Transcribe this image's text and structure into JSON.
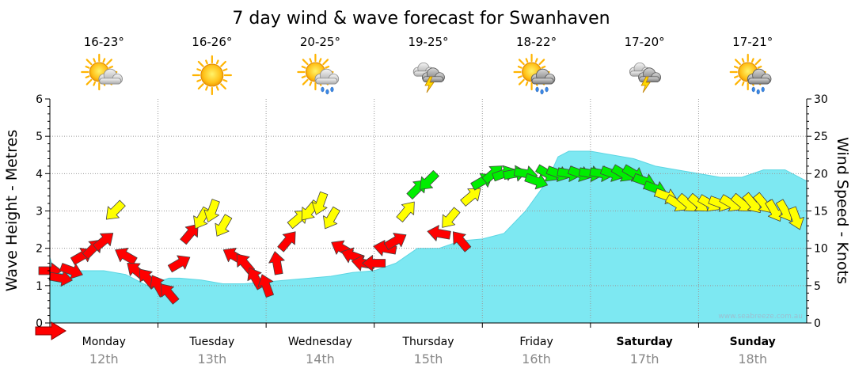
{
  "chart_data": {
    "type": "area",
    "title": "7 day wind & wave forecast for Swanhaven",
    "ylabel_left": "Wave Height - Metres",
    "ylabel_right": "Wind Speed - Knots",
    "ylim_left": [
      0,
      6
    ],
    "ylim_right": [
      0,
      30
    ],
    "yticks_left": [
      "0",
      "1",
      "2",
      "3",
      "4",
      "5",
      "6"
    ],
    "yticks_right": [
      "0",
      "5",
      "10",
      "15",
      "20",
      "25",
      "30"
    ],
    "watermark": "www.seabreeze.com.au",
    "days": [
      {
        "name": "Monday",
        "date": "12th",
        "temp": "16-23°",
        "icon": "partly-cloudy-icon",
        "bold": false
      },
      {
        "name": "Tuesday",
        "date": "13th",
        "temp": "16-26°",
        "icon": "sunny-icon",
        "bold": false
      },
      {
        "name": "Wednesday",
        "date": "14th",
        "temp": "20-25°",
        "icon": "sun-showers-icon",
        "bold": false
      },
      {
        "name": "Thursday",
        "date": "15th",
        "temp": "19-25°",
        "icon": "storm-icon",
        "bold": false
      },
      {
        "name": "Friday",
        "date": "16th",
        "temp": "18-22°",
        "icon": "sun-rain-icon",
        "bold": false
      },
      {
        "name": "Saturday",
        "date": "17th",
        "temp": "17-20°",
        "icon": "storm-icon",
        "bold": true
      },
      {
        "name": "Sunday",
        "date": "18th",
        "temp": "17-21°",
        "icon": "sun-rain-icon",
        "bold": true
      }
    ],
    "wave_height": {
      "name": "Wave Height",
      "color": "#7de8f2",
      "x_days": [
        0,
        0.05,
        0.15,
        0.3,
        0.5,
        0.7,
        0.9,
        1.0,
        1.1,
        1.2,
        1.4,
        1.6,
        1.8,
        2.0,
        2.2,
        2.4,
        2.6,
        2.8,
        3.0,
        3.2,
        3.4,
        3.6,
        3.8,
        4.0,
        4.2,
        4.4,
        4.6,
        4.7,
        4.8,
        5.0,
        5.2,
        5.4,
        5.6,
        5.8,
        6.0,
        6.2,
        6.4,
        6.6,
        6.8,
        7.0
      ],
      "values": [
        1.75,
        1.3,
        1.35,
        1.4,
        1.4,
        1.3,
        1.0,
        1.1,
        1.2,
        1.2,
        1.15,
        1.05,
        1.05,
        1.1,
        1.15,
        1.2,
        1.25,
        1.35,
        1.4,
        1.6,
        2.0,
        2.0,
        2.2,
        2.25,
        2.4,
        3.0,
        3.8,
        4.45,
        4.6,
        4.6,
        4.5,
        4.4,
        4.2,
        4.1,
        4.0,
        3.9,
        3.9,
        4.1,
        4.1,
        3.8
      ]
    },
    "wind": {
      "name": "Wind Speed",
      "color_scale": [
        {
          "max_knots": 12,
          "color": "#ff0000"
        },
        {
          "max_knots": 17,
          "color": "#ffff00"
        },
        {
          "max_knots": 30,
          "color": "#00ee00"
        }
      ],
      "x_days": [
        0,
        0.1,
        0.2,
        0.3,
        0.4,
        0.5,
        0.6,
        0.7,
        0.8,
        0.9,
        1.0,
        1.1,
        1.2,
        1.3,
        1.4,
        1.5,
        1.6,
        1.7,
        1.8,
        1.9,
        2.0,
        2.1,
        2.2,
        2.3,
        2.4,
        2.5,
        2.6,
        2.7,
        2.8,
        2.9,
        3.0,
        3.1,
        3.2,
        3.3,
        3.4,
        3.5,
        3.6,
        3.7,
        3.8,
        3.9,
        4.0,
        4.1,
        4.2,
        4.3,
        4.4,
        4.5,
        4.6,
        4.7,
        4.8,
        4.9,
        5.0,
        5.1,
        5.2,
        5.3,
        5.4,
        5.5,
        5.6,
        5.7,
        5.8,
        5.9,
        6.0,
        6.1,
        6.2,
        6.3,
        6.4,
        6.5,
        6.6,
        6.7,
        6.8,
        6.9
      ],
      "knots": [
        7,
        6,
        7,
        9,
        10,
        11,
        15,
        9,
        7,
        6,
        5,
        4,
        8,
        12,
        14,
        15,
        13,
        9,
        8,
        6,
        5,
        8,
        11,
        14,
        15,
        16,
        14,
        10,
        9,
        8,
        8,
        10,
        11,
        15,
        18,
        19,
        12,
        14,
        11,
        17,
        19,
        20,
        20,
        20,
        20,
        19,
        20,
        20,
        20,
        20,
        20,
        20,
        20,
        20,
        20,
        19,
        18,
        17,
        16,
        16,
        16,
        16,
        16,
        16,
        16,
        16,
        16,
        15,
        15,
        14
      ],
      "direction_deg": [
        90,
        100,
        110,
        60,
        45,
        50,
        225,
        300,
        310,
        320,
        330,
        320,
        60,
        40,
        210,
        200,
        210,
        300,
        320,
        330,
        340,
        350,
        40,
        50,
        220,
        200,
        210,
        300,
        290,
        280,
        270,
        280,
        60,
        40,
        45,
        225,
        280,
        220,
        320,
        50,
        60,
        50,
        70,
        80,
        100,
        110,
        120,
        110,
        100,
        110,
        100,
        100,
        110,
        120,
        120,
        110,
        110,
        110,
        120,
        130,
        130,
        120,
        110,
        120,
        130,
        140,
        140,
        150,
        150,
        160
      ]
    },
    "grid": true
  }
}
